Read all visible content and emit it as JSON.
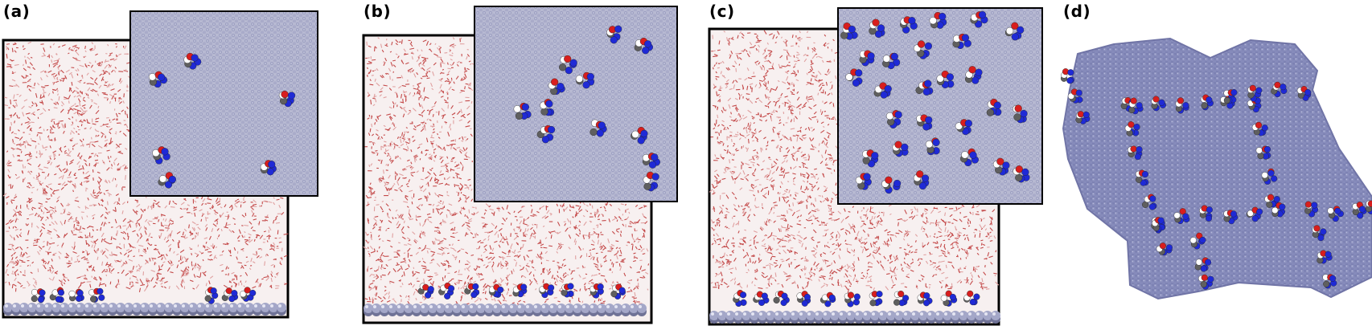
{
  "panels": [
    {
      "label": "(a)"
    },
    {
      "label": "(b)"
    },
    {
      "label": "(c)"
    },
    {
      "label": "(d)"
    }
  ],
  "colors": {
    "water_oxygen": "#c44a4a",
    "water_hydrogen": "#f2f2f2",
    "surface_atom": "#a4a7c8",
    "surface_atom_shadow": "#6f7296",
    "nitrogen": "#1f2ad6",
    "oxygen": "#d81e1e",
    "carbon": "#5f5f5f",
    "hydrogen": "#ffffff",
    "frame": "#000000"
  }
}
